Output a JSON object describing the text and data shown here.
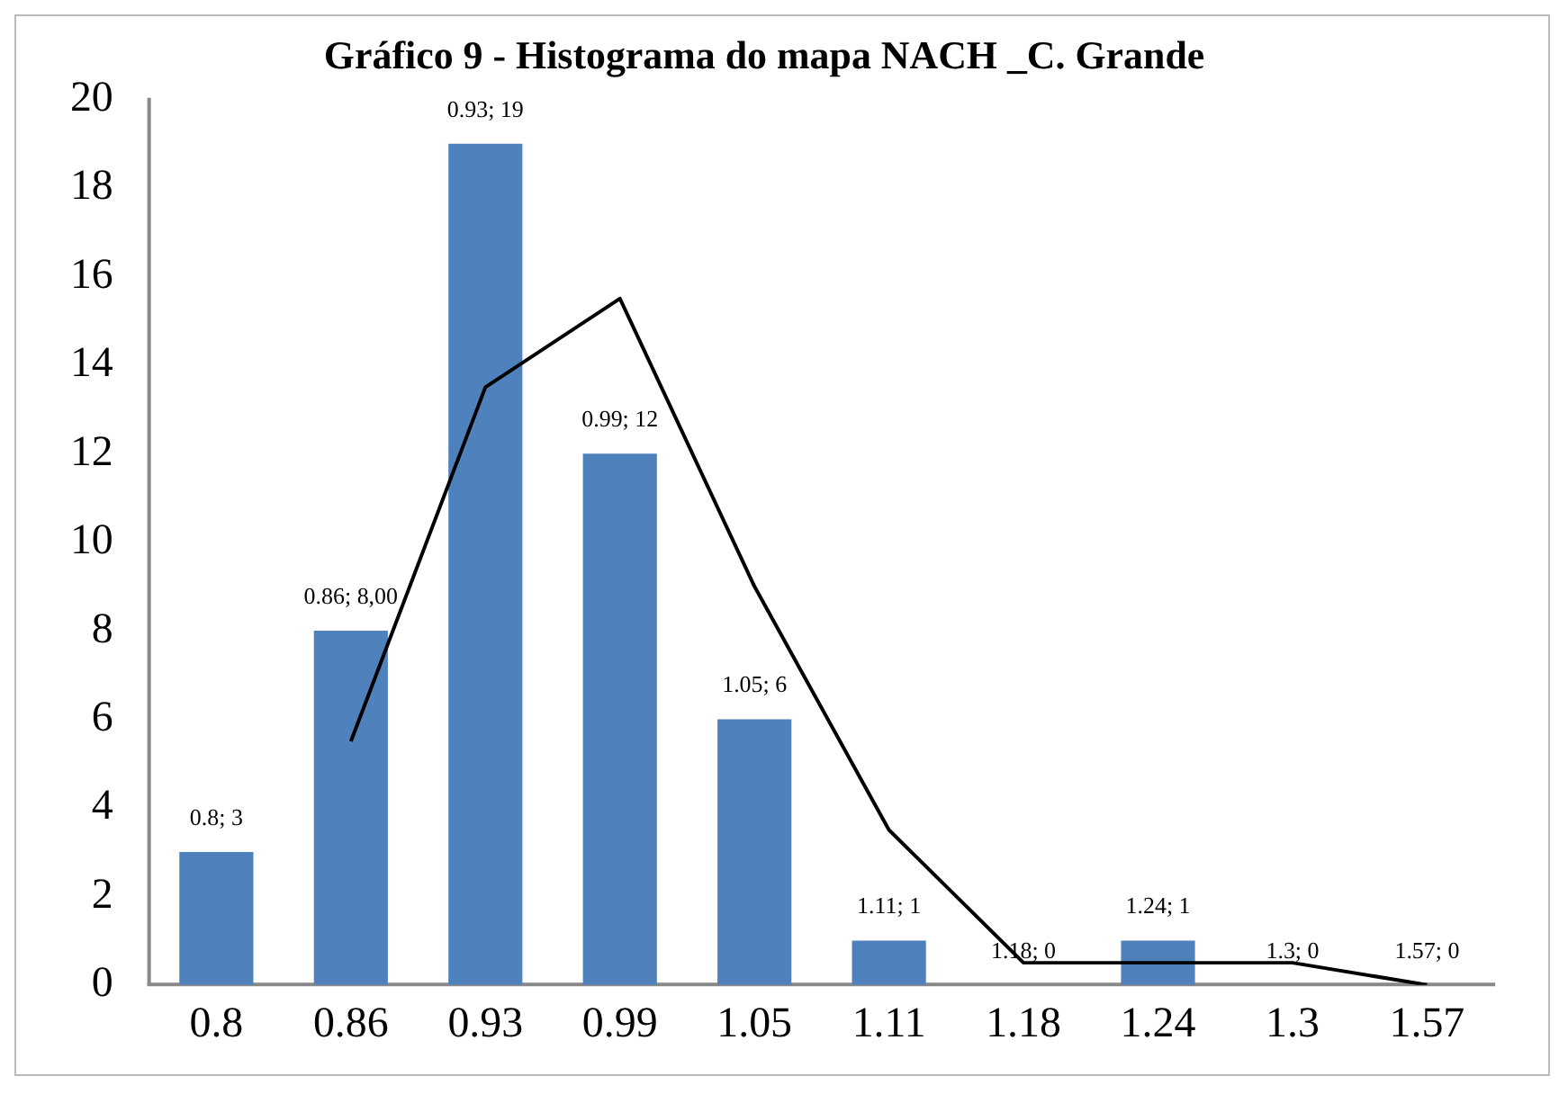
{
  "chart_data": {
    "type": "bar",
    "title": "Gráfico 9 - Histograma do mapa NACH _C. Grande",
    "categories": [
      "0.8",
      "0.86",
      "0.93",
      "0.99",
      "1.05",
      "1.11",
      "1.18",
      "1.24",
      "1.3",
      "1.57"
    ],
    "series": [
      {
        "color": "#4f81bd",
        "values": [
          3,
          8,
          19,
          12,
          6,
          1,
          0,
          1,
          0,
          0
        ],
        "value_labels": [
          "0.8; 3",
          "0.86; 8,00",
          "0.93; 19",
          "0.99; 12",
          "1.05; 6",
          "1.11; 1",
          "1.18; 0",
          "1.24; 1",
          "1.3; 0",
          "1.57; 0"
        ]
      },
      {
        "type": "line",
        "color": "#000000",
        "values": [
          null,
          5.5,
          13.5,
          15.5,
          9,
          3.5,
          0.5,
          0.5,
          0.5,
          0
        ]
      }
    ],
    "ylim": [
      0,
      20
    ],
    "yticks": [
      0,
      2,
      4,
      6,
      8,
      10,
      12,
      14,
      16,
      18,
      20
    ],
    "grid": false,
    "legend": false,
    "marker": "none"
  }
}
